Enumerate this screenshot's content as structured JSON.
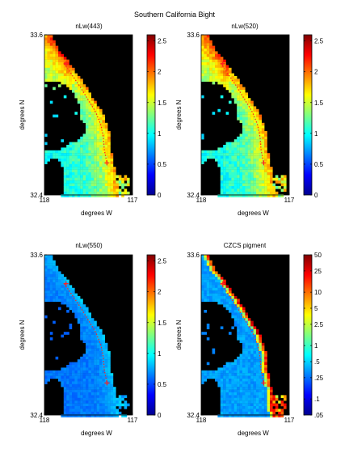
{
  "figure": {
    "suptitle": "Southern California Bight"
  },
  "chart_data": [
    {
      "type": "heatmap",
      "title": "nLw(443)",
      "xlabel": "degrees W",
      "ylabel": "degrees N",
      "xticks": [
        "118",
        "117"
      ],
      "yticks": [
        "33.6",
        "32.4"
      ],
      "colorbar": {
        "ticks": [
          "0",
          "0.5",
          "1",
          "1.5",
          "2",
          "2.5"
        ],
        "range": [
          0,
          2.6
        ],
        "scale": "linear"
      },
      "field_character": "bright"
    },
    {
      "type": "heatmap",
      "title": "nLw(520)",
      "xlabel": "degrees W",
      "ylabel": "degrees N",
      "xticks": [
        "118",
        "117"
      ],
      "yticks": [
        "33.6",
        "32.4"
      ],
      "colorbar": {
        "ticks": [
          "0",
          "0.5",
          "1",
          "1.5",
          "2",
          "2.5"
        ],
        "range": [
          0,
          2.6
        ],
        "scale": "linear"
      },
      "field_character": "bright"
    },
    {
      "type": "heatmap",
      "title": "nLw(550)",
      "xlabel": "degrees W",
      "ylabel": "degrees N",
      "xticks": [
        "118",
        "117"
      ],
      "yticks": [
        "33.6",
        "32.4"
      ],
      "colorbar": {
        "ticks": [
          "0",
          "0.5",
          "1",
          "1.5",
          "2",
          "2.5"
        ],
        "range": [
          0,
          2.6
        ],
        "scale": "linear"
      },
      "field_character": "dim"
    },
    {
      "type": "heatmap",
      "title": "CZCS pigment",
      "xlabel": "degrees W",
      "ylabel": "degrees N",
      "xticks": [
        "118",
        "117"
      ],
      "yticks": [
        "33.6",
        "32.4"
      ],
      "colorbar": {
        "ticks": [
          ".05",
          ".1",
          ".25",
          ".5",
          "1",
          "2.5",
          "5",
          "10",
          "25",
          "50"
        ],
        "range": [
          0.05,
          50
        ],
        "scale": "log"
      },
      "field_character": "pigment"
    }
  ]
}
